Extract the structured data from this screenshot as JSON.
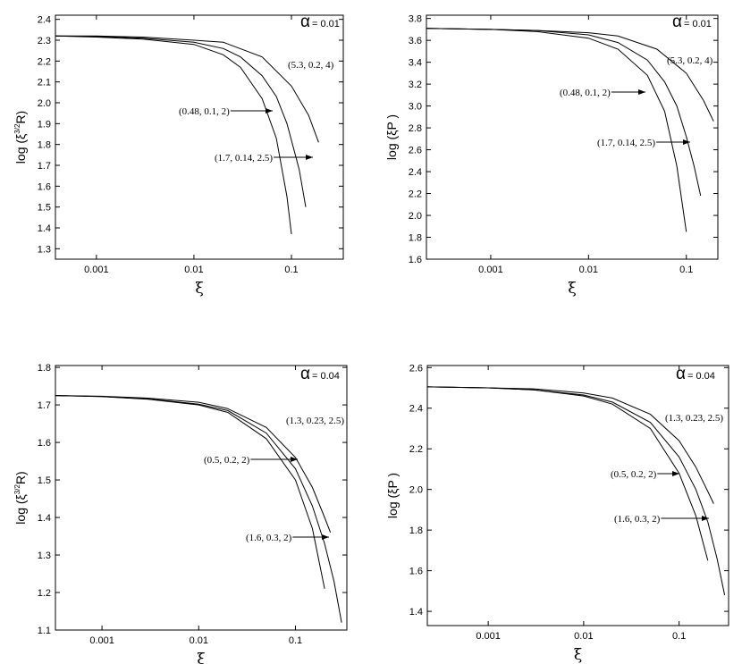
{
  "chart_data": [
    {
      "type": "line",
      "xscale": "log",
      "ylabel": "log (ξ",
      "ylabel_sup": "3/2",
      "ylabel_end": "R)",
      "xlabel": "ξ",
      "alpha_symbol": "α",
      "alpha_label": "= 0.01",
      "xlim": [
        0.00038,
        0.34
      ],
      "ylim": [
        1.25,
        2.42
      ],
      "xticks": [
        0.001,
        0.01,
        0.1
      ],
      "yticks": [
        1.3,
        1.4,
        1.5,
        1.6,
        1.7,
        1.8,
        1.9,
        {
          "value": 2,
          "label": "2.0"
        },
        2.1,
        2.2,
        2.3,
        2.4
      ],
      "series": [
        {
          "name": "(0.48, 0.1, 2)",
          "color": "#000000",
          "x": [
            0.00038,
            0.001,
            0.003,
            0.01,
            0.02,
            0.03,
            0.05,
            0.07,
            0.09,
            0.1
          ],
          "values": [
            2.32,
            2.315,
            2.305,
            2.28,
            2.23,
            2.17,
            2.02,
            1.83,
            1.55,
            1.37
          ]
        },
        {
          "name": "(1.7, 0.14, 2.5)",
          "color": "#000000",
          "x": [
            0.00038,
            0.001,
            0.003,
            0.01,
            0.02,
            0.03,
            0.05,
            0.07,
            0.09,
            0.1,
            0.12,
            0.14
          ],
          "values": [
            2.32,
            2.318,
            2.31,
            2.29,
            2.26,
            2.22,
            2.13,
            2.03,
            1.9,
            1.82,
            1.68,
            1.5
          ]
        },
        {
          "name": "(5.3, 0.2, 4)",
          "color": "#000000",
          "x": [
            0.00038,
            0.001,
            0.003,
            0.01,
            0.02,
            0.05,
            0.1,
            0.15,
            0.19
          ],
          "values": [
            2.32,
            2.32,
            2.315,
            2.3,
            2.29,
            2.22,
            2.08,
            1.94,
            1.81
          ]
        }
      ]
    },
    {
      "type": "line",
      "xscale": "log",
      "ylabel": "log (ξP )",
      "xlabel": "ξ",
      "alpha_symbol": "α",
      "alpha_label": "= 0.01",
      "xlim": [
        0.00022,
        0.21
      ],
      "ylim": [
        1.6,
        3.83
      ],
      "xticks": [
        0.001,
        0.01,
        0.1
      ],
      "yticks": [
        1.6,
        1.8,
        {
          "value": 2,
          "label": "2.0"
        },
        2.2,
        2.4,
        2.6,
        2.8,
        {
          "value": 3,
          "label": "3.0"
        },
        3.2,
        3.4,
        3.6,
        3.8
      ],
      "series": [
        {
          "name": "(0.48, 0.1, 2)",
          "color": "#000000",
          "x": [
            0.00022,
            0.001,
            0.003,
            0.01,
            0.02,
            0.04,
            0.06,
            0.08,
            0.1
          ],
          "values": [
            3.71,
            3.7,
            3.68,
            3.62,
            3.52,
            3.28,
            2.95,
            2.45,
            1.85
          ]
        },
        {
          "name": "(1.7, 0.14, 2.5)",
          "color": "#000000",
          "x": [
            0.00022,
            0.001,
            0.003,
            0.01,
            0.02,
            0.04,
            0.06,
            0.08,
            0.1,
            0.12,
            0.14
          ],
          "values": [
            3.71,
            3.7,
            3.69,
            3.65,
            3.58,
            3.42,
            3.22,
            3.0,
            2.72,
            2.45,
            2.18
          ]
        },
        {
          "name": "(5.3, 0.2, 4)",
          "color": "#000000",
          "x": [
            0.00022,
            0.001,
            0.003,
            0.01,
            0.02,
            0.05,
            0.1,
            0.15,
            0.19
          ],
          "values": [
            3.71,
            3.7,
            3.69,
            3.67,
            3.64,
            3.52,
            3.3,
            3.05,
            2.86
          ]
        }
      ]
    },
    {
      "type": "line",
      "xscale": "log",
      "ylabel": "log (ξ",
      "ylabel_sup": "3/2",
      "ylabel_end": "R)",
      "xlabel": "ξ",
      "alpha_symbol": "α",
      "alpha_label": "= 0.04",
      "xlim": [
        0.00033,
        0.34
      ],
      "ylim": [
        1.1,
        1.805
      ],
      "xticks": [
        0.001,
        0.01,
        0.1
      ],
      "yticks": [
        1.1,
        1.2,
        1.3,
        1.4,
        1.5,
        1.6,
        1.7,
        1.8
      ],
      "series": [
        {
          "name": "(0.5, 0.2, 2)",
          "color": "#000000",
          "x": [
            0.00033,
            0.001,
            0.003,
            0.01,
            0.02,
            0.05,
            0.1,
            0.15,
            0.2
          ],
          "values": [
            1.725,
            1.722,
            1.715,
            1.7,
            1.68,
            1.61,
            1.5,
            1.37,
            1.21
          ]
        },
        {
          "name": "(1.6, 0.3, 2)",
          "color": "#000000",
          "x": [
            0.00033,
            0.001,
            0.003,
            0.01,
            0.02,
            0.05,
            0.1,
            0.15,
            0.2,
            0.25,
            0.3
          ],
          "values": [
            1.725,
            1.722,
            1.716,
            1.702,
            1.685,
            1.625,
            1.53,
            1.43,
            1.33,
            1.23,
            1.12
          ]
        },
        {
          "name": "(1.3, 0.23, 2.5)",
          "color": "#000000",
          "x": [
            0.00033,
            0.001,
            0.003,
            0.01,
            0.02,
            0.05,
            0.1,
            0.15,
            0.2,
            0.23
          ],
          "values": [
            1.725,
            1.723,
            1.718,
            1.707,
            1.69,
            1.64,
            1.56,
            1.48,
            1.4,
            1.36
          ]
        }
      ]
    },
    {
      "type": "line",
      "xscale": "log",
      "ylabel": "log (ξP )",
      "xlabel": "ξ",
      "alpha_symbol": "α",
      "alpha_label": "= 0.04",
      "xlim": [
        0.00023,
        0.33
      ],
      "ylim": [
        1.33,
        2.61
      ],
      "xticks": [
        0.001,
        0.01,
        0.1
      ],
      "yticks": [
        1.4,
        1.6,
        1.8,
        {
          "value": 2,
          "label": "2.0"
        },
        2.2,
        2.4,
        2.6
      ],
      "series": [
        {
          "name": "(0.5, 0.2, 2)",
          "color": "#000000",
          "x": [
            0.00023,
            0.001,
            0.003,
            0.01,
            0.02,
            0.05,
            0.1,
            0.15,
            0.2
          ],
          "values": [
            2.505,
            2.5,
            2.49,
            2.46,
            2.42,
            2.3,
            2.08,
            1.87,
            1.65
          ]
        },
        {
          "name": "(1.6, 0.3, 2)",
          "color": "#000000",
          "x": [
            0.00023,
            0.001,
            0.003,
            0.01,
            0.02,
            0.05,
            0.1,
            0.15,
            0.2,
            0.25,
            0.3
          ],
          "values": [
            2.505,
            2.5,
            2.49,
            2.465,
            2.43,
            2.33,
            2.16,
            2.0,
            1.84,
            1.66,
            1.48
          ]
        },
        {
          "name": "(1.3, 0.23, 2.5)",
          "color": "#000000",
          "x": [
            0.00023,
            0.001,
            0.003,
            0.01,
            0.02,
            0.05,
            0.1,
            0.15,
            0.2,
            0.23
          ],
          "values": [
            2.505,
            2.5,
            2.495,
            2.475,
            2.45,
            2.37,
            2.24,
            2.11,
            1.99,
            1.93
          ]
        }
      ]
    }
  ]
}
